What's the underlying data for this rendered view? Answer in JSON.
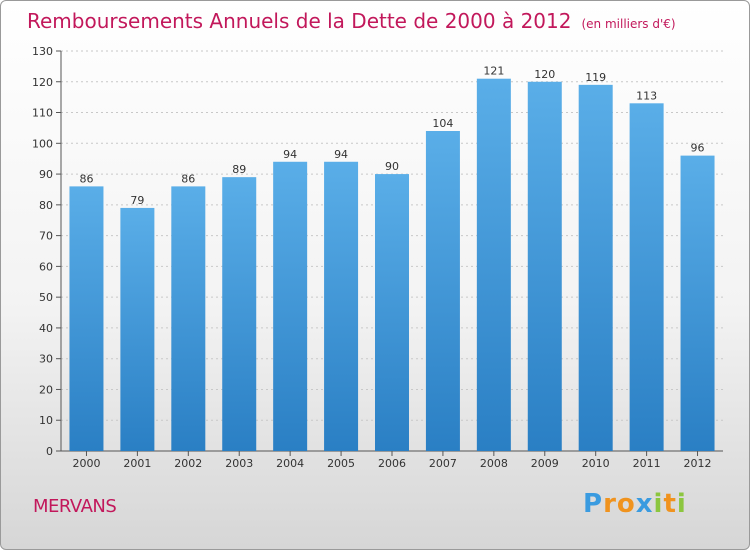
{
  "header": {
    "title": "Remboursements Annuels de la Dette de 2000 à 2012",
    "subtitle": "(en milliers d'€)"
  },
  "footer": {
    "town": "MERVANS",
    "logo_letters": [
      "P",
      "r",
      "o",
      "x",
      "i",
      "t",
      "i"
    ],
    "logo_colors": [
      "#3a9be0",
      "#f0931e",
      "#f0931e",
      "#3a9be0",
      "#8cc63f",
      "#f0931e",
      "#8cc63f"
    ]
  },
  "colors": {
    "bar_top": "#5aaee8",
    "bar_bottom": "#2a7fc4",
    "title": "#c2185b",
    "grid": "#c8c8c8",
    "axis_text": "#333333"
  },
  "chart_data": {
    "type": "bar",
    "title": "Remboursements Annuels de la Dette de 2000 à 2012",
    "xlabel": "",
    "ylabel": "",
    "categories": [
      "2000",
      "2001",
      "2002",
      "2003",
      "2004",
      "2005",
      "2006",
      "2007",
      "2008",
      "2009",
      "2010",
      "2011",
      "2012"
    ],
    "values": [
      86,
      79,
      86,
      89,
      94,
      94,
      90,
      104,
      121,
      120,
      119,
      113,
      96
    ],
    "ylim": [
      0,
      130
    ],
    "yticks": [
      0,
      10,
      20,
      30,
      40,
      50,
      60,
      70,
      80,
      90,
      100,
      110,
      120,
      130
    ],
    "grid": true
  }
}
